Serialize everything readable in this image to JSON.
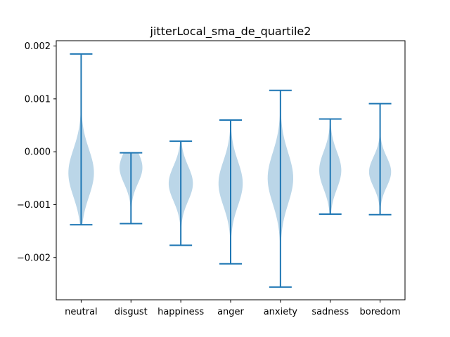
{
  "chart_data": {
    "type": "violin",
    "title": "jitterLocal_sma_de_quartile2",
    "xlabel": "",
    "ylabel": "",
    "categories": [
      "neutral",
      "disgust",
      "happiness",
      "anger",
      "anxiety",
      "sadness",
      "boredom"
    ],
    "ylim": [
      -0.0028,
      0.0021
    ],
    "yticks": [
      -0.002,
      -0.001,
      0.0,
      0.001,
      0.002
    ],
    "ytick_labels": [
      "−0.002",
      "−0.001",
      "0.000",
      "0.001",
      "0.002"
    ],
    "grid": false,
    "colors": {
      "body": "#1f77b4",
      "line": "#1f77b4"
    },
    "violins": [
      {
        "name": "neutral",
        "min": -0.00138,
        "max": 0.00185,
        "center": -0.0004,
        "spread": 0.00045,
        "width": 0.95
      },
      {
        "name": "disgust",
        "min": -0.00136,
        "max": -2e-05,
        "center": -0.0003,
        "spread": 0.0003,
        "width": 0.85
      },
      {
        "name": "happiness",
        "min": -0.00177,
        "max": 0.0002,
        "center": -0.0006,
        "spread": 0.00033,
        "width": 0.9
      },
      {
        "name": "anger",
        "min": -0.00212,
        "max": 0.0006,
        "center": -0.0006,
        "spread": 0.00042,
        "width": 0.9
      },
      {
        "name": "anxiety",
        "min": -0.00256,
        "max": 0.00116,
        "center": -0.0005,
        "spread": 0.00048,
        "width": 0.95
      },
      {
        "name": "sadness",
        "min": -0.00118,
        "max": 0.00062,
        "center": -0.00035,
        "spread": 0.00035,
        "width": 0.82
      },
      {
        "name": "boredom",
        "min": -0.00119,
        "max": 0.00091,
        "center": -0.00038,
        "spread": 0.00028,
        "width": 0.82
      }
    ]
  }
}
